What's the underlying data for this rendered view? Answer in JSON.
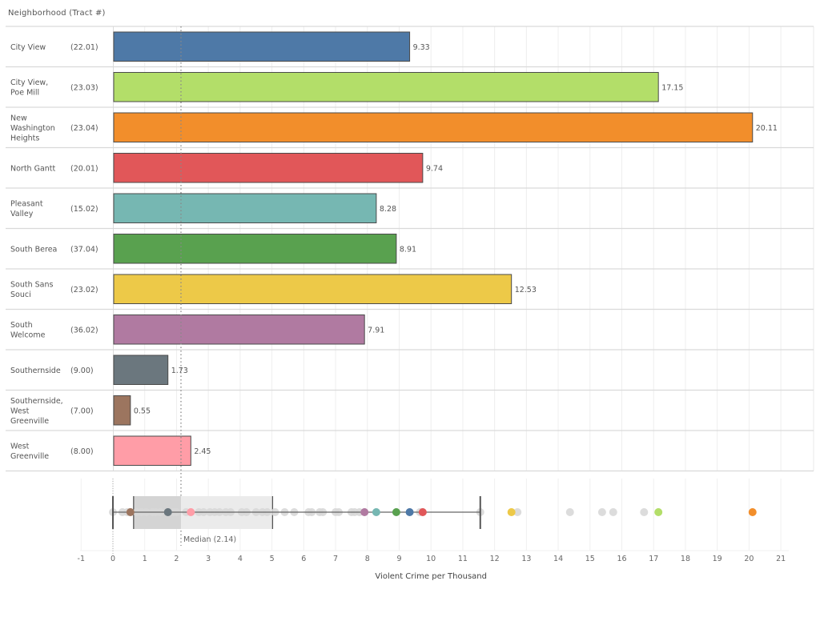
{
  "header": {
    "column_title": "Neighborhood (Tract #)"
  },
  "chart_data": [
    {
      "type": "bar",
      "orientation": "horizontal",
      "title": "",
      "xlabel": "Violent Crime per Thousand",
      "ylabel": "Neighborhood (Tract #)",
      "xlim": [
        -1,
        22
      ],
      "grid": true,
      "reference_line": {
        "label": "Median (2.14)",
        "value": 2.14
      },
      "categories": [
        {
          "name": "City View",
          "lines": [
            "City View"
          ],
          "tract": "(22.01)",
          "value": 9.33,
          "value_label": "9.33",
          "color": "#4e79a7"
        },
        {
          "name": "City View, Poe Mill",
          "lines": [
            "City View,",
            "Poe Mill"
          ],
          "tract": "(23.03)",
          "value": 17.15,
          "value_label": "17.15",
          "color": "#b3de69"
        },
        {
          "name": "New Washington Heights",
          "lines": [
            "New",
            "Washington",
            "Heights"
          ],
          "tract": "(23.04)",
          "value": 20.11,
          "value_label": "20.11",
          "color": "#f28e2b"
        },
        {
          "name": "North Gantt",
          "lines": [
            "North Gantt"
          ],
          "tract": "(20.01)",
          "value": 9.74,
          "value_label": "9.74",
          "color": "#e15759"
        },
        {
          "name": "Pleasant Valley",
          "lines": [
            "Pleasant",
            "Valley"
          ],
          "tract": "(15.02)",
          "value": 8.28,
          "value_label": "8.28",
          "color": "#76b7b2"
        },
        {
          "name": "South Berea",
          "lines": [
            "South Berea"
          ],
          "tract": "(37.04)",
          "value": 8.91,
          "value_label": "8.91",
          "color": "#59a14f"
        },
        {
          "name": "South Sans Souci",
          "lines": [
            "South Sans",
            "Souci"
          ],
          "tract": "(23.02)",
          "value": 12.53,
          "value_label": "12.53",
          "color": "#edc948"
        },
        {
          "name": "South Welcome",
          "lines": [
            "South",
            "Welcome"
          ],
          "tract": "(36.02)",
          "value": 7.91,
          "value_label": "7.91",
          "color": "#b07aa1"
        },
        {
          "name": "Southernside",
          "lines": [
            "Southernside"
          ],
          "tract": "(9.00)",
          "value": 1.73,
          "value_label": "1.73",
          "color": "#6b777e"
        },
        {
          "name": "Southernside, West Greenville",
          "lines": [
            "Southernside,",
            "West",
            "Greenville"
          ],
          "tract": "(7.00)",
          "value": 0.55,
          "value_label": "0.55",
          "color": "#9c755f"
        },
        {
          "name": "West Greenville",
          "lines": [
            "West",
            "Greenville"
          ],
          "tract": "(8.00)",
          "value": 2.45,
          "value_label": "2.45",
          "color": "#ff9da7"
        }
      ]
    },
    {
      "type": "scatter",
      "subtype": "box-and-dot-plot",
      "xlabel": "Violent Crime per Thousand",
      "xlim": [
        -1,
        22
      ],
      "x_ticks": [
        "-1",
        "0",
        "1",
        "2",
        "3",
        "4",
        "5",
        "6",
        "7",
        "8",
        "9",
        "10",
        "11",
        "12",
        "13",
        "14",
        "15",
        "16",
        "17",
        "18",
        "19",
        "20",
        "21"
      ],
      "box": {
        "whisker_low": 0.0,
        "q1": 0.65,
        "median": 2.14,
        "q3": 5.02,
        "whisker_high": 11.55
      },
      "median_label": "Median (2.14)",
      "other_points": [
        0.0,
        0.3,
        0.45,
        0.75,
        0.9,
        1.05,
        1.25,
        1.35,
        1.5,
        1.9,
        2.0,
        2.3,
        2.7,
        2.85,
        3.05,
        3.2,
        3.35,
        3.55,
        3.7,
        4.05,
        4.2,
        4.5,
        4.7,
        4.85,
        5.1,
        5.4,
        5.7,
        6.15,
        6.25,
        6.5,
        6.6,
        7.0,
        7.1,
        7.5,
        7.6,
        7.75,
        9.65,
        11.55,
        12.72,
        14.37,
        15.38,
        15.73,
        16.7
      ],
      "highlight_points_from_bars": true,
      "point_color_other": "#d8d8d8"
    }
  ]
}
